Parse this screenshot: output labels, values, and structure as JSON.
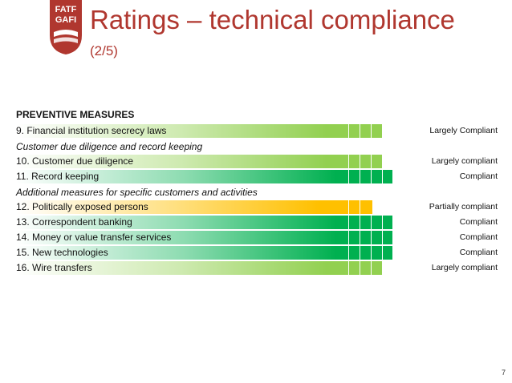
{
  "logo": {
    "line1": "FATF",
    "line2": "GAFI"
  },
  "header": {
    "title": "Ratings – technical compliance",
    "subtitle": "(2/5)"
  },
  "section": {
    "heading": "PREVENTIVE MEASURES"
  },
  "subheads": {
    "cdd": "Customer due diligence and record keeping",
    "additional": "Additional measures for specific customers and activities"
  },
  "rows": [
    {
      "label": "9. Financial institution secrecy laws",
      "rating": "Largely Compliant",
      "level": "LC"
    },
    {
      "label": "10. Customer due diligence",
      "rating": "Largely compliant",
      "level": "LC"
    },
    {
      "label": "11. Record keeping",
      "rating": "Compliant",
      "level": "C"
    },
    {
      "label": "12. Politically exposed persons",
      "rating": "Partially compliant",
      "level": "PC"
    },
    {
      "label": "13. Correspondent banking",
      "rating": "Compliant",
      "level": "C"
    },
    {
      "label": "14. Money or value transfer services",
      "rating": "Compliant",
      "level": "C"
    },
    {
      "label": "15. New technologies",
      "rating": "Compliant",
      "level": "C"
    },
    {
      "label": "16. Wire transfers",
      "rating": "Largely compliant",
      "level": "LC"
    }
  ],
  "colors": {
    "title": "#b0372f",
    "compliant": "#00b050",
    "largely_compliant": "#92d050",
    "partially_compliant": "#ffc000"
  },
  "page": {
    "number": "7"
  }
}
